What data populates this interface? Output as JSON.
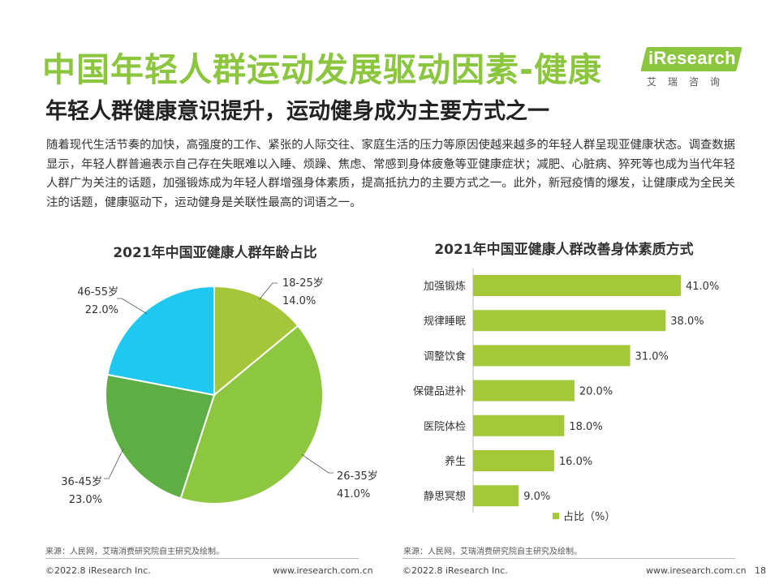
{
  "header": {
    "title": "中国年轻人群运动发展驱动因素-健康",
    "subtitle": "年轻人群健康意识提升，运动健身成为主要方式之一"
  },
  "logo": {
    "text": "iResearch",
    "chinese": "艾瑞咨询",
    "color": "#8cc63f"
  },
  "body": {
    "paragraph": "随着现代生活节奏的加快，高强度的工作、紧张的人际交往、家庭生活的压力等原因使越来越多的年轻人群呈现亚健康状态。调查数据显示，年轻人群普遍表示自己存在失眠难以入睡、烦躁、焦虑、常感到身体疲惫等亚健康症状；减肥、心脏病、猝死等也成为当代年轻人群广为关注的话题，加强锻炼成为年轻人群增强身体素质，提高抵抗力的主要方式之一。此外，新冠疫情的爆发，让健康成为全民关注的话题，健康驱动下，运动健身是关联性最高的词语之一。"
  },
  "chart_data": [
    {
      "type": "pie",
      "title": "2021年中国亚健康人群年龄占比",
      "slices": [
        {
          "label": "18-25岁",
          "value": 14.0,
          "display": "14.0%",
          "color": "#a5c63b"
        },
        {
          "label": "26-35岁",
          "value": 41.0,
          "display": "41.0%",
          "color": "#8dc63f"
        },
        {
          "label": "36-45岁",
          "value": 23.0,
          "display": "23.0%",
          "color": "#5fae45"
        },
        {
          "label": "46-55岁",
          "value": 22.0,
          "display": "22.0%",
          "color": "#1ec8f0"
        }
      ]
    },
    {
      "type": "bar",
      "orientation": "horizontal",
      "title": "2021年中国亚健康人群改善身体素质方式",
      "categories": [
        "加强锻炼",
        "规律睡眠",
        "调整饮食",
        "保健品进补",
        "医院体检",
        "养生",
        "静思冥想"
      ],
      "series": [
        {
          "name": "占比（%）",
          "values": [
            41.0,
            38.0,
            31.0,
            20.0,
            18.0,
            16.0,
            9.0
          ],
          "color": "#a3c93a"
        }
      ],
      "value_labels": [
        "41.0%",
        "38.0%",
        "31.0%",
        "20.0%",
        "18.0%",
        "16.0%",
        "9.0%"
      ],
      "legend": "bottom"
    }
  ],
  "footer": {
    "left_source": "来源：人民网，艾瑞消费研究院自主研究及绘制。",
    "right_source": "来源：人民网，艾瑞消费研究院自主研究及绘制。",
    "left_copyright": "©2022.8 iResearch Inc.",
    "left_site": "www.iresearch.com.cn",
    "right_copyright": "©2022.8 iResearch Inc.",
    "right_site": "www.iresearch.com.cn",
    "page_number": "18"
  }
}
